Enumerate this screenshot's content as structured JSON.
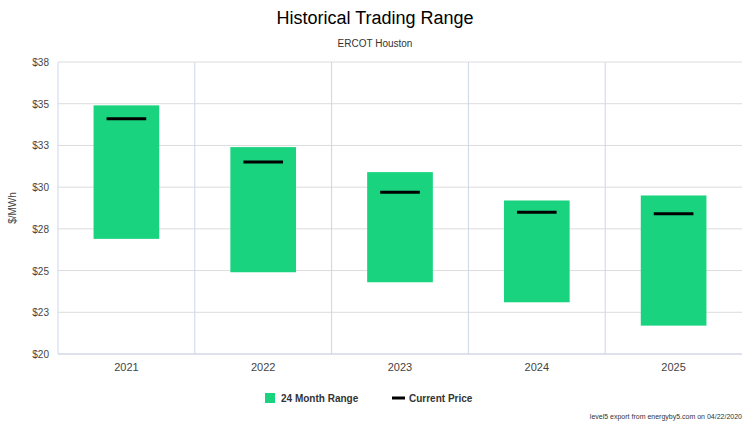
{
  "chart_data": {
    "type": "range",
    "title": "Historical Trading Range",
    "subtitle": "ERCOT Houston",
    "y_label": "$/MWh",
    "source": "level5 export from energyby5.com on 04/22/2020",
    "categories": [
      "2021",
      "2022",
      "2023",
      "2024",
      "2025"
    ],
    "series": [
      {
        "name": "24 Month Range",
        "color": "#19d37f",
        "type": "range",
        "low": [
          26.9,
          24.9,
          24.3,
          23.1,
          21.7
        ],
        "high": [
          34.9,
          32.4,
          30.9,
          29.2,
          29.5
        ]
      },
      {
        "name": "Current Price",
        "color": "#000000",
        "type": "marker",
        "values": [
          34.1,
          31.5,
          29.7,
          28.5,
          28.4
        ]
      }
    ],
    "ylim": [
      20,
      37.5
    ],
    "yticks": [
      {
        "value": 20,
        "label": "$20"
      },
      {
        "value": 22.5,
        "label": "$23"
      },
      {
        "value": 25,
        "label": "$25"
      },
      {
        "value": 27.5,
        "label": "$28"
      },
      {
        "value": 30,
        "label": "$30"
      },
      {
        "value": 32.5,
        "label": "$33"
      },
      {
        "value": 35,
        "label": "$35"
      },
      {
        "value": 37.5,
        "label": "$38"
      }
    ],
    "grid": true,
    "legend": "bottom"
  }
}
